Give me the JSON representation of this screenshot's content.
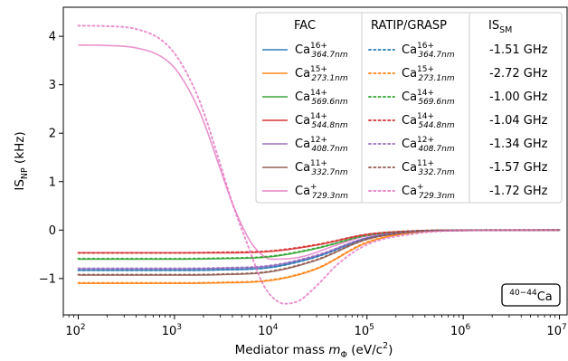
{
  "chart_data": {
    "type": "line",
    "title": "",
    "xlabel_main": "Mediator mass ",
    "xlabel_var": "m",
    "xlabel_sub": "Φ",
    "xlabel_unit": " (eV/c",
    "xlabel_unit_sup": "2",
    "xlabel_unit_end": ")",
    "ylabel_main": "IS",
    "ylabel_sub": "NP",
    "ylabel_unit": " (kHz)",
    "x_scale": "log",
    "xlim": [
      70,
      12000000
    ],
    "ylim": [
      -1.75,
      4.6
    ],
    "x_ticks": [
      100,
      1000,
      10000,
      100000,
      1000000,
      10000000
    ],
    "x_tick_labels": [
      {
        "base": "10",
        "exp": "2"
      },
      {
        "base": "10",
        "exp": "3"
      },
      {
        "base": "10",
        "exp": "4"
      },
      {
        "base": "10",
        "exp": "5"
      },
      {
        "base": "10",
        "exp": "6"
      },
      {
        "base": "10",
        "exp": "7"
      }
    ],
    "y_ticks": [
      -1,
      0,
      1,
      2,
      3,
      4
    ],
    "y_tick_labels": [
      "−1",
      "0",
      "1",
      "2",
      "3",
      "4"
    ],
    "grid": false,
    "legend_position": "top-right",
    "legend_headers": {
      "fac": "FAC",
      "ratip": "RATIP/GRASP",
      "is_main": "IS",
      "is_sub": "SM"
    },
    "isotope_box": {
      "pre": "40−44",
      "elem": "Ca"
    },
    "series": [
      {
        "name": "Ca",
        "charge": "16+",
        "wavelength": "364.7nm",
        "method": "FAC",
        "color": "#1f77b4",
        "is_sm": "-1.51 GHz",
        "x": [
          100,
          1000,
          3000,
          10000,
          30000,
          100000,
          300000,
          1000000,
          10000000
        ],
        "y": [
          -0.83,
          -0.83,
          -0.82,
          -0.77,
          -0.55,
          -0.17,
          -0.03,
          -0.005,
          0
        ]
      },
      {
        "name": "Ca",
        "charge": "15+",
        "wavelength": "273.1nm",
        "method": "FAC",
        "color": "#ff7f0e",
        "is_sm": "-2.72 GHz",
        "x": [
          100,
          1000,
          3000,
          10000,
          30000,
          100000,
          300000,
          1000000,
          10000000
        ],
        "y": [
          -1.1,
          -1.1,
          -1.09,
          -1.04,
          -0.8,
          -0.26,
          -0.05,
          -0.005,
          0
        ]
      },
      {
        "name": "Ca",
        "charge": "14+",
        "wavelength": "569.6nm",
        "method": "FAC",
        "color": "#2ca02c",
        "is_sm": "-1.00 GHz",
        "x": [
          100,
          1000,
          3000,
          10000,
          30000,
          100000,
          300000,
          1000000,
          10000000
        ],
        "y": [
          -0.6,
          -0.6,
          -0.59,
          -0.55,
          -0.38,
          -0.11,
          -0.02,
          -0.003,
          0
        ]
      },
      {
        "name": "Ca",
        "charge": "14+",
        "wavelength": "544.8nm",
        "method": "FAC",
        "color": "#d62728",
        "is_sm": "-1.04 GHz",
        "x": [
          100,
          1000,
          3000,
          10000,
          30000,
          100000,
          300000,
          1000000,
          10000000
        ],
        "y": [
          -0.47,
          -0.47,
          -0.47,
          -0.44,
          -0.31,
          -0.09,
          -0.02,
          -0.002,
          0
        ]
      },
      {
        "name": "Ca",
        "charge": "12+",
        "wavelength": "408.7nm",
        "method": "FAC",
        "color": "#9467bd",
        "is_sm": "-1.34 GHz",
        "x": [
          100,
          1000,
          3000,
          10000,
          30000,
          100000,
          300000,
          1000000,
          10000000
        ],
        "y": [
          -0.8,
          -0.8,
          -0.79,
          -0.74,
          -0.53,
          -0.16,
          -0.03,
          -0.004,
          0
        ]
      },
      {
        "name": "Ca",
        "charge": "11+",
        "wavelength": "332.7nm",
        "method": "FAC",
        "color": "#8c564b",
        "is_sm": "-1.57 GHz",
        "x": [
          100,
          1000,
          3000,
          10000,
          30000,
          100000,
          300000,
          1000000,
          10000000
        ],
        "y": [
          -0.93,
          -0.93,
          -0.92,
          -0.86,
          -0.62,
          -0.19,
          -0.04,
          -0.005,
          0
        ]
      },
      {
        "name": "Ca",
        "charge": "+",
        "wavelength": "729.3nm",
        "method": "FAC",
        "color": "#e377c2",
        "is_sm": "-1.72 GHz",
        "x": [
          100,
          200,
          400,
          700,
          1000,
          1500,
          2000,
          3000,
          4000,
          6000,
          8000,
          10000,
          20000,
          50000,
          100000,
          1000000,
          10000000
        ],
        "y": [
          3.82,
          3.81,
          3.76,
          3.6,
          3.35,
          2.8,
          2.25,
          1.25,
          0.55,
          -0.2,
          -0.5,
          -0.6,
          -0.56,
          -0.3,
          -0.12,
          -0.01,
          0
        ]
      },
      {
        "name": "Ca",
        "charge": "16+",
        "wavelength": "364.7nm",
        "method": "RATIP/GRASP",
        "color": "#1f77b4",
        "x": [
          100,
          1000,
          3000,
          10000,
          30000,
          100000,
          300000,
          1000000,
          10000000
        ],
        "y": [
          -0.83,
          -0.83,
          -0.82,
          -0.77,
          -0.55,
          -0.17,
          -0.03,
          -0.005,
          0
        ]
      },
      {
        "name": "Ca",
        "charge": "15+",
        "wavelength": "273.1nm",
        "method": "RATIP/GRASP",
        "color": "#ff7f0e",
        "x": [
          100,
          1000,
          3000,
          10000,
          30000,
          100000,
          300000,
          1000000,
          10000000
        ],
        "y": [
          -1.09,
          -1.09,
          -1.08,
          -1.03,
          -0.79,
          -0.25,
          -0.05,
          -0.005,
          0
        ]
      },
      {
        "name": "Ca",
        "charge": "14+",
        "wavelength": "569.6nm",
        "method": "RATIP/GRASP",
        "color": "#2ca02c",
        "x": [
          100,
          1000,
          3000,
          10000,
          30000,
          100000,
          300000,
          1000000,
          10000000
        ],
        "y": [
          -0.59,
          -0.59,
          -0.58,
          -0.54,
          -0.37,
          -0.11,
          -0.02,
          -0.003,
          0
        ]
      },
      {
        "name": "Ca",
        "charge": "14+",
        "wavelength": "544.8nm",
        "method": "RATIP/GRASP",
        "color": "#d62728",
        "x": [
          100,
          1000,
          3000,
          10000,
          30000,
          100000,
          300000,
          1000000,
          10000000
        ],
        "y": [
          -0.47,
          -0.47,
          -0.46,
          -0.43,
          -0.3,
          -0.09,
          -0.02,
          -0.002,
          0
        ]
      },
      {
        "name": "Ca",
        "charge": "12+",
        "wavelength": "408.7nm",
        "method": "RATIP/GRASP",
        "color": "#9467bd",
        "x": [
          100,
          1000,
          3000,
          10000,
          30000,
          100000,
          300000,
          1000000,
          10000000
        ],
        "y": [
          -0.79,
          -0.79,
          -0.78,
          -0.73,
          -0.52,
          -0.16,
          -0.03,
          -0.004,
          0
        ]
      },
      {
        "name": "Ca",
        "charge": "11+",
        "wavelength": "332.7nm",
        "method": "RATIP/GRASP",
        "color": "#8c564b",
        "x": [
          100,
          1000,
          3000,
          10000,
          30000,
          100000,
          300000,
          1000000,
          10000000
        ],
        "y": [
          -0.92,
          -0.92,
          -0.91,
          -0.85,
          -0.61,
          -0.19,
          -0.04,
          -0.005,
          0
        ]
      },
      {
        "name": "Ca",
        "charge": "+",
        "wavelength": "729.3nm",
        "method": "RATIP/GRASP",
        "color": "#e377c2",
        "x": [
          100,
          200,
          400,
          700,
          1000,
          1500,
          2000,
          3000,
          4000,
          6000,
          8000,
          10000,
          14000,
          20000,
          30000,
          50000,
          100000,
          300000,
          1000000,
          10000000
        ],
        "y": [
          4.22,
          4.21,
          4.15,
          3.95,
          3.65,
          3.05,
          2.45,
          1.35,
          0.55,
          -0.4,
          -1.05,
          -1.35,
          -1.52,
          -1.45,
          -1.15,
          -0.7,
          -0.3,
          -0.08,
          -0.01,
          0
        ]
      }
    ]
  }
}
